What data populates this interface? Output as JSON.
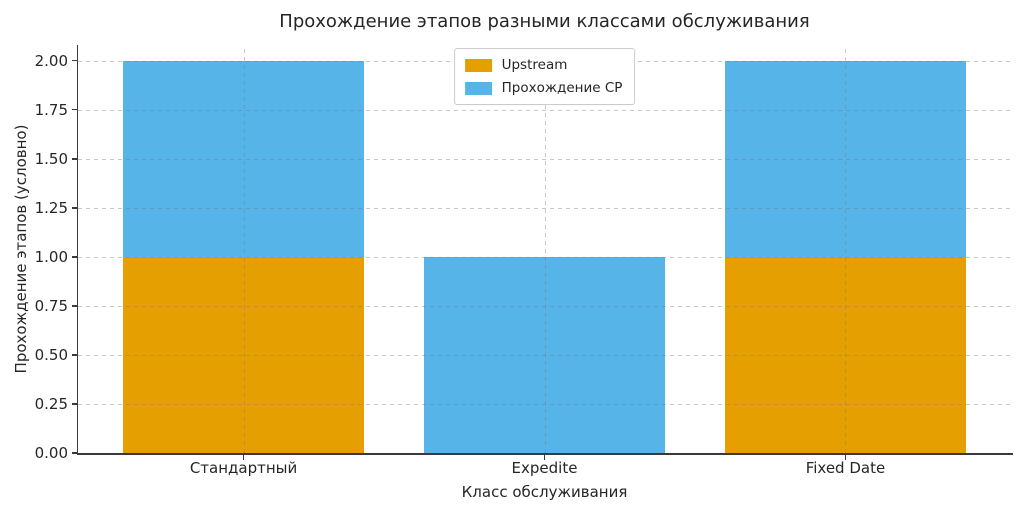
{
  "chart_data": {
    "type": "bar",
    "stacked": true,
    "title": "Прохождение этапов разными классами обслуживания",
    "xlabel": "Класс обслуживания",
    "ylabel": "Прохождение этапов (условно)",
    "categories": [
      "Стандартный",
      "Expedite",
      "Fixed Date"
    ],
    "series": [
      {
        "name": "Upstream",
        "color": "#E69F00",
        "values": [
          1,
          0,
          1
        ]
      },
      {
        "name": "Прохождение CP",
        "color": "#56B4E9",
        "values": [
          1,
          1,
          1
        ]
      }
    ],
    "yticks": [
      0,
      0.25,
      0.5,
      0.75,
      1,
      1.25,
      1.5,
      1.75,
      2
    ],
    "ylim": [
      0,
      2.08
    ],
    "xlim": [
      -0.55,
      2.55
    ],
    "bar_width": 0.8,
    "grid": "both-dashed",
    "legend_position": "upper center"
  },
  "colors": {
    "background": "#ffffff",
    "grid": "#d6d6d6",
    "axis": "#3a3a3a",
    "text": "#262626",
    "legend_border": "#cccccc"
  }
}
